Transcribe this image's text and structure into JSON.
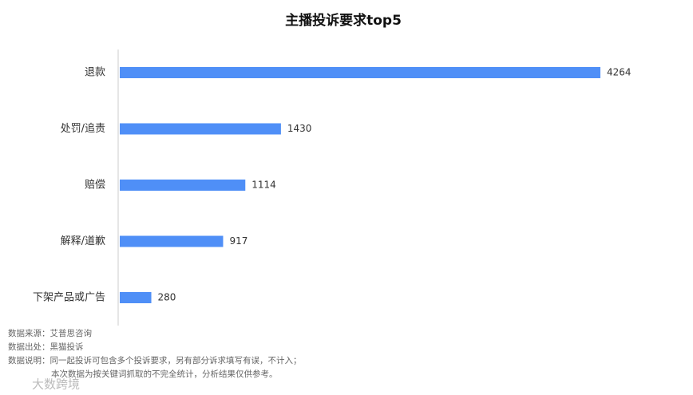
{
  "chart_data": {
    "type": "hbar",
    "title": "主播投诉要求top5",
    "categories": [
      "退款",
      "处罚/追责",
      "赔偿",
      "解释/道歉",
      "下架产品或广告"
    ],
    "values": [
      4264,
      1430,
      1114,
      917,
      280
    ],
    "color": "#4f8ff7",
    "notes": [
      "数据来源：艾普思咨询",
      "数据出处：黑猫投诉",
      "数据说明：同一起投诉可包含多个投诉要求，另有部分诉求填写有误，不计入；",
      "本次数据为按关键词抓取的不完全统计，分析结果仅供参考。"
    ],
    "source_mark": "大数跨境"
  }
}
